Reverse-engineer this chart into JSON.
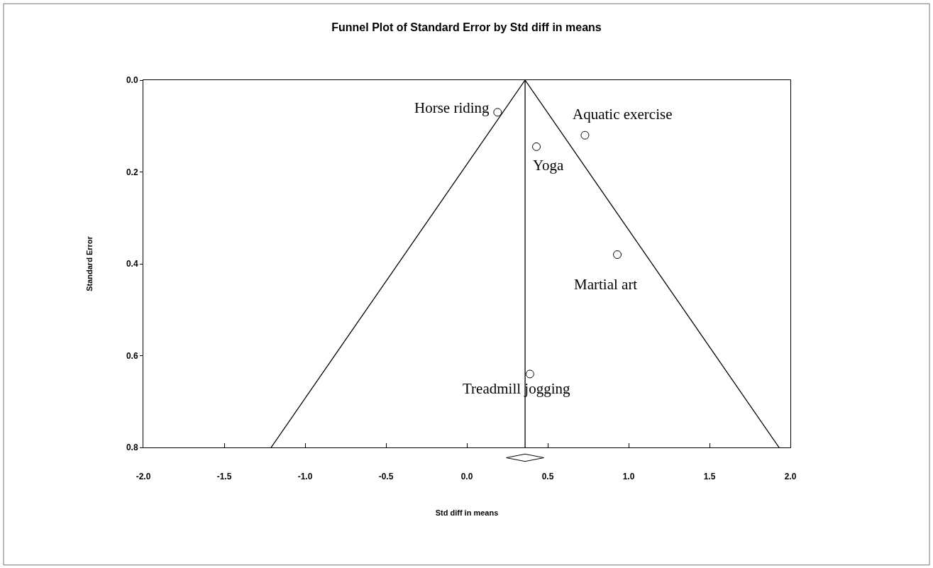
{
  "chart_data": {
    "type": "scatter",
    "title": "Funnel Plot of Standard Error by Std diff in means",
    "xlabel": "Std diff in means",
    "ylabel": "Standard Error",
    "series": [
      {
        "color": "#000000",
        "marker": "circle",
        "x": [
          0.19,
          0.73,
          0.43,
          0.93,
          0.39
        ],
        "values": [
          0.07,
          0.12,
          0.145,
          0.38,
          0.64
        ]
      },
      {
        "type": "line",
        "color": "#000000",
        "marker": "none",
        "x": [
          -1.21,
          0.36,
          1.93
        ],
        "values": [
          0.8,
          0.0,
          0.8
        ]
      }
    ],
    "annotations": [
      {
        "text": "Horse riding",
        "x": 0.19,
        "y": 0.07
      },
      {
        "text": "Aquatic exercise",
        "x": 0.73,
        "y": 0.12
      },
      {
        "text": "Yoga",
        "x": 0.43,
        "y": 0.145
      },
      {
        "text": "Martial art",
        "x": 0.93,
        "y": 0.38
      },
      {
        "text": "Treadmill jogging",
        "x": 0.39,
        "y": 0.64
      }
    ],
    "ref_lines": [
      {
        "axis": "x",
        "value": 0.36,
        "color": "#000000"
      }
    ],
    "xlim": [
      -2.0,
      2.0
    ],
    "xticks": [
      {
        "value": -2.0,
        "label": "-2.0"
      },
      {
        "value": -1.5,
        "label": "-1.5"
      },
      {
        "value": -1.0,
        "label": "-1.0"
      },
      {
        "value": -0.5,
        "label": "-0.5"
      },
      {
        "value": 0.0,
        "label": "0.0"
      },
      {
        "value": 0.5,
        "label": "0.5"
      },
      {
        "value": 1.0,
        "label": "1.0"
      },
      {
        "value": 1.5,
        "label": "1.5"
      },
      {
        "value": 2.0,
        "label": "2.0"
      }
    ],
    "ylim": [
      0.8,
      0.0
    ],
    "yticks": [
      {
        "value": 0.0,
        "label": "0.0"
      },
      {
        "value": 0.2,
        "label": "0.2"
      },
      {
        "value": 0.4,
        "label": "0.4"
      },
      {
        "value": 0.6,
        "label": "0.6"
      },
      {
        "value": 0.8,
        "label": "0.8"
      }
    ]
  }
}
